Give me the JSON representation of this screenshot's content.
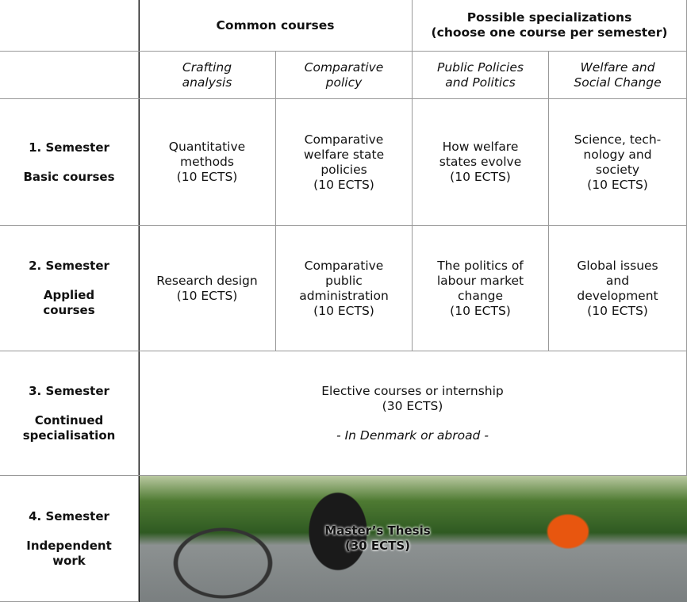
{
  "header": {
    "common_courses": "Common courses",
    "specializations": [
      "Possible specializations",
      "(choose one course per semester)"
    ]
  },
  "tracks": [
    [
      "Crafting",
      "analysis"
    ],
    [
      "Comparative",
      "policy"
    ],
    [
      "Public Policies",
      "and Politics"
    ],
    [
      "Welfare and",
      "Social Change"
    ]
  ],
  "semesters": [
    {
      "title": "1. Semester",
      "subtitle": [
        "Basic courses"
      ],
      "courses": [
        [
          "Quantitative",
          "methods",
          "(10 ECTS)"
        ],
        [
          "Comparative",
          "welfare state",
          "policies",
          "(10 ECTS)"
        ],
        [
          "How welfare",
          "states evolve",
          "(10 ECTS)"
        ],
        [
          "Science, tech-",
          "nology and",
          "society",
          "(10 ECTS)"
        ]
      ]
    },
    {
      "title": "2. Semester",
      "subtitle": [
        "Applied",
        "courses"
      ],
      "courses": [
        [
          "Research design",
          "(10 ECTS)"
        ],
        [
          "Comparative",
          "public",
          "administration",
          "(10 ECTS)"
        ],
        [
          "The politics of",
          "labour market",
          "change",
          "(10 ECTS)"
        ],
        [
          "Global issues",
          "and",
          "development",
          "(10 ECTS)"
        ]
      ]
    },
    {
      "title": "3. Semester",
      "subtitle": [
        "Continued",
        "specialisation"
      ],
      "content": [
        "Elective courses or internship",
        "(30 ECTS)"
      ],
      "note": "- In Denmark or abroad -"
    },
    {
      "title": "4. Semester",
      "subtitle": [
        "Independent",
        "work"
      ],
      "content": [
        "Master’s Thesis",
        "(30 ECTS)"
      ]
    }
  ]
}
